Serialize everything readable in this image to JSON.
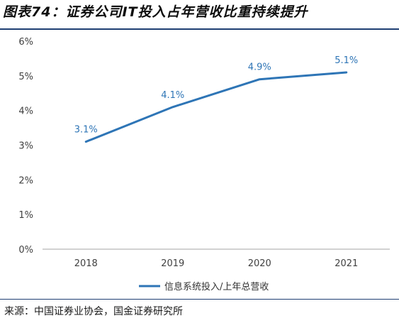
{
  "title": "图表74：证券公司IT投入占年营收比重持续提升",
  "source": "来源：中国证券业协会，国金证券研究所",
  "chart_data": {
    "type": "line",
    "categories": [
      "2018",
      "2019",
      "2020",
      "2021"
    ],
    "series": [
      {
        "name": "信息系统投入/上年总营收",
        "values": [
          3.1,
          4.1,
          4.9,
          5.1
        ],
        "labels": [
          "3.1%",
          "4.1%",
          "4.9%",
          "5.1%"
        ],
        "color": "#2e75b6"
      }
    ],
    "yticks": [
      "0%",
      "1%",
      "2%",
      "3%",
      "4%",
      "5%",
      "6%"
    ],
    "ylim": [
      0,
      6
    ],
    "grid": false,
    "legend_position": "bottom"
  }
}
